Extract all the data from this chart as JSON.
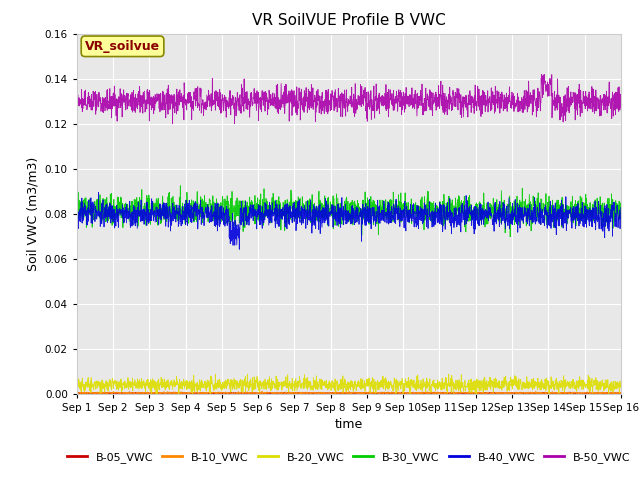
{
  "title": "VR SoilVUE Profile B VWC",
  "xlabel": "time",
  "ylabel": "Soil VWC (m3/m3)",
  "ylim": [
    0,
    0.16
  ],
  "xlim_days": [
    0,
    15
  ],
  "yticks": [
    0.0,
    0.02,
    0.04,
    0.06,
    0.08,
    0.1,
    0.12,
    0.14,
    0.16
  ],
  "xtick_labels": [
    "Sep 1",
    "Sep 2",
    "Sep 3",
    "Sep 4",
    "Sep 5",
    "Sep 6",
    "Sep 7",
    "Sep 8",
    "Sep 9",
    "Sep 10",
    "Sep 11",
    "Sep 12",
    "Sep 13",
    "Sep 14",
    "Sep 15",
    "Sep 16"
  ],
  "n_points": 2160,
  "series": [
    {
      "name": "B-05_VWC",
      "color": "#cc0000",
      "mean": 0.0002,
      "noise": 0.00015,
      "trend": 0.0
    },
    {
      "name": "B-10_VWC",
      "color": "#ff8800",
      "mean": 0.0003,
      "noise": 0.0002,
      "trend": 0.0
    },
    {
      "name": "B-20_VWC",
      "color": "#dddd00",
      "mean": 0.004,
      "noise": 0.0015,
      "trend": 0.0
    },
    {
      "name": "B-30_VWC",
      "color": "#00cc00",
      "mean": 0.082,
      "noise": 0.003,
      "trend": -0.001
    },
    {
      "name": "B-40_VWC",
      "color": "#0000dd",
      "mean": 0.08,
      "noise": 0.003,
      "trend": -0.001
    },
    {
      "name": "B-50_VWC",
      "color": "#aa00aa",
      "mean": 0.13,
      "noise": 0.003,
      "trend": 0.0
    }
  ],
  "legend_label": "VR_soilvue",
  "legend_bg": "#ffff99",
  "legend_edge": "#8b0000",
  "plot_bg": "#e8e8e8",
  "fig_bg": "#ffffff",
  "title_fontsize": 11,
  "axis_label_fontsize": 9,
  "tick_fontsize": 7.5,
  "legend_fontsize": 8
}
